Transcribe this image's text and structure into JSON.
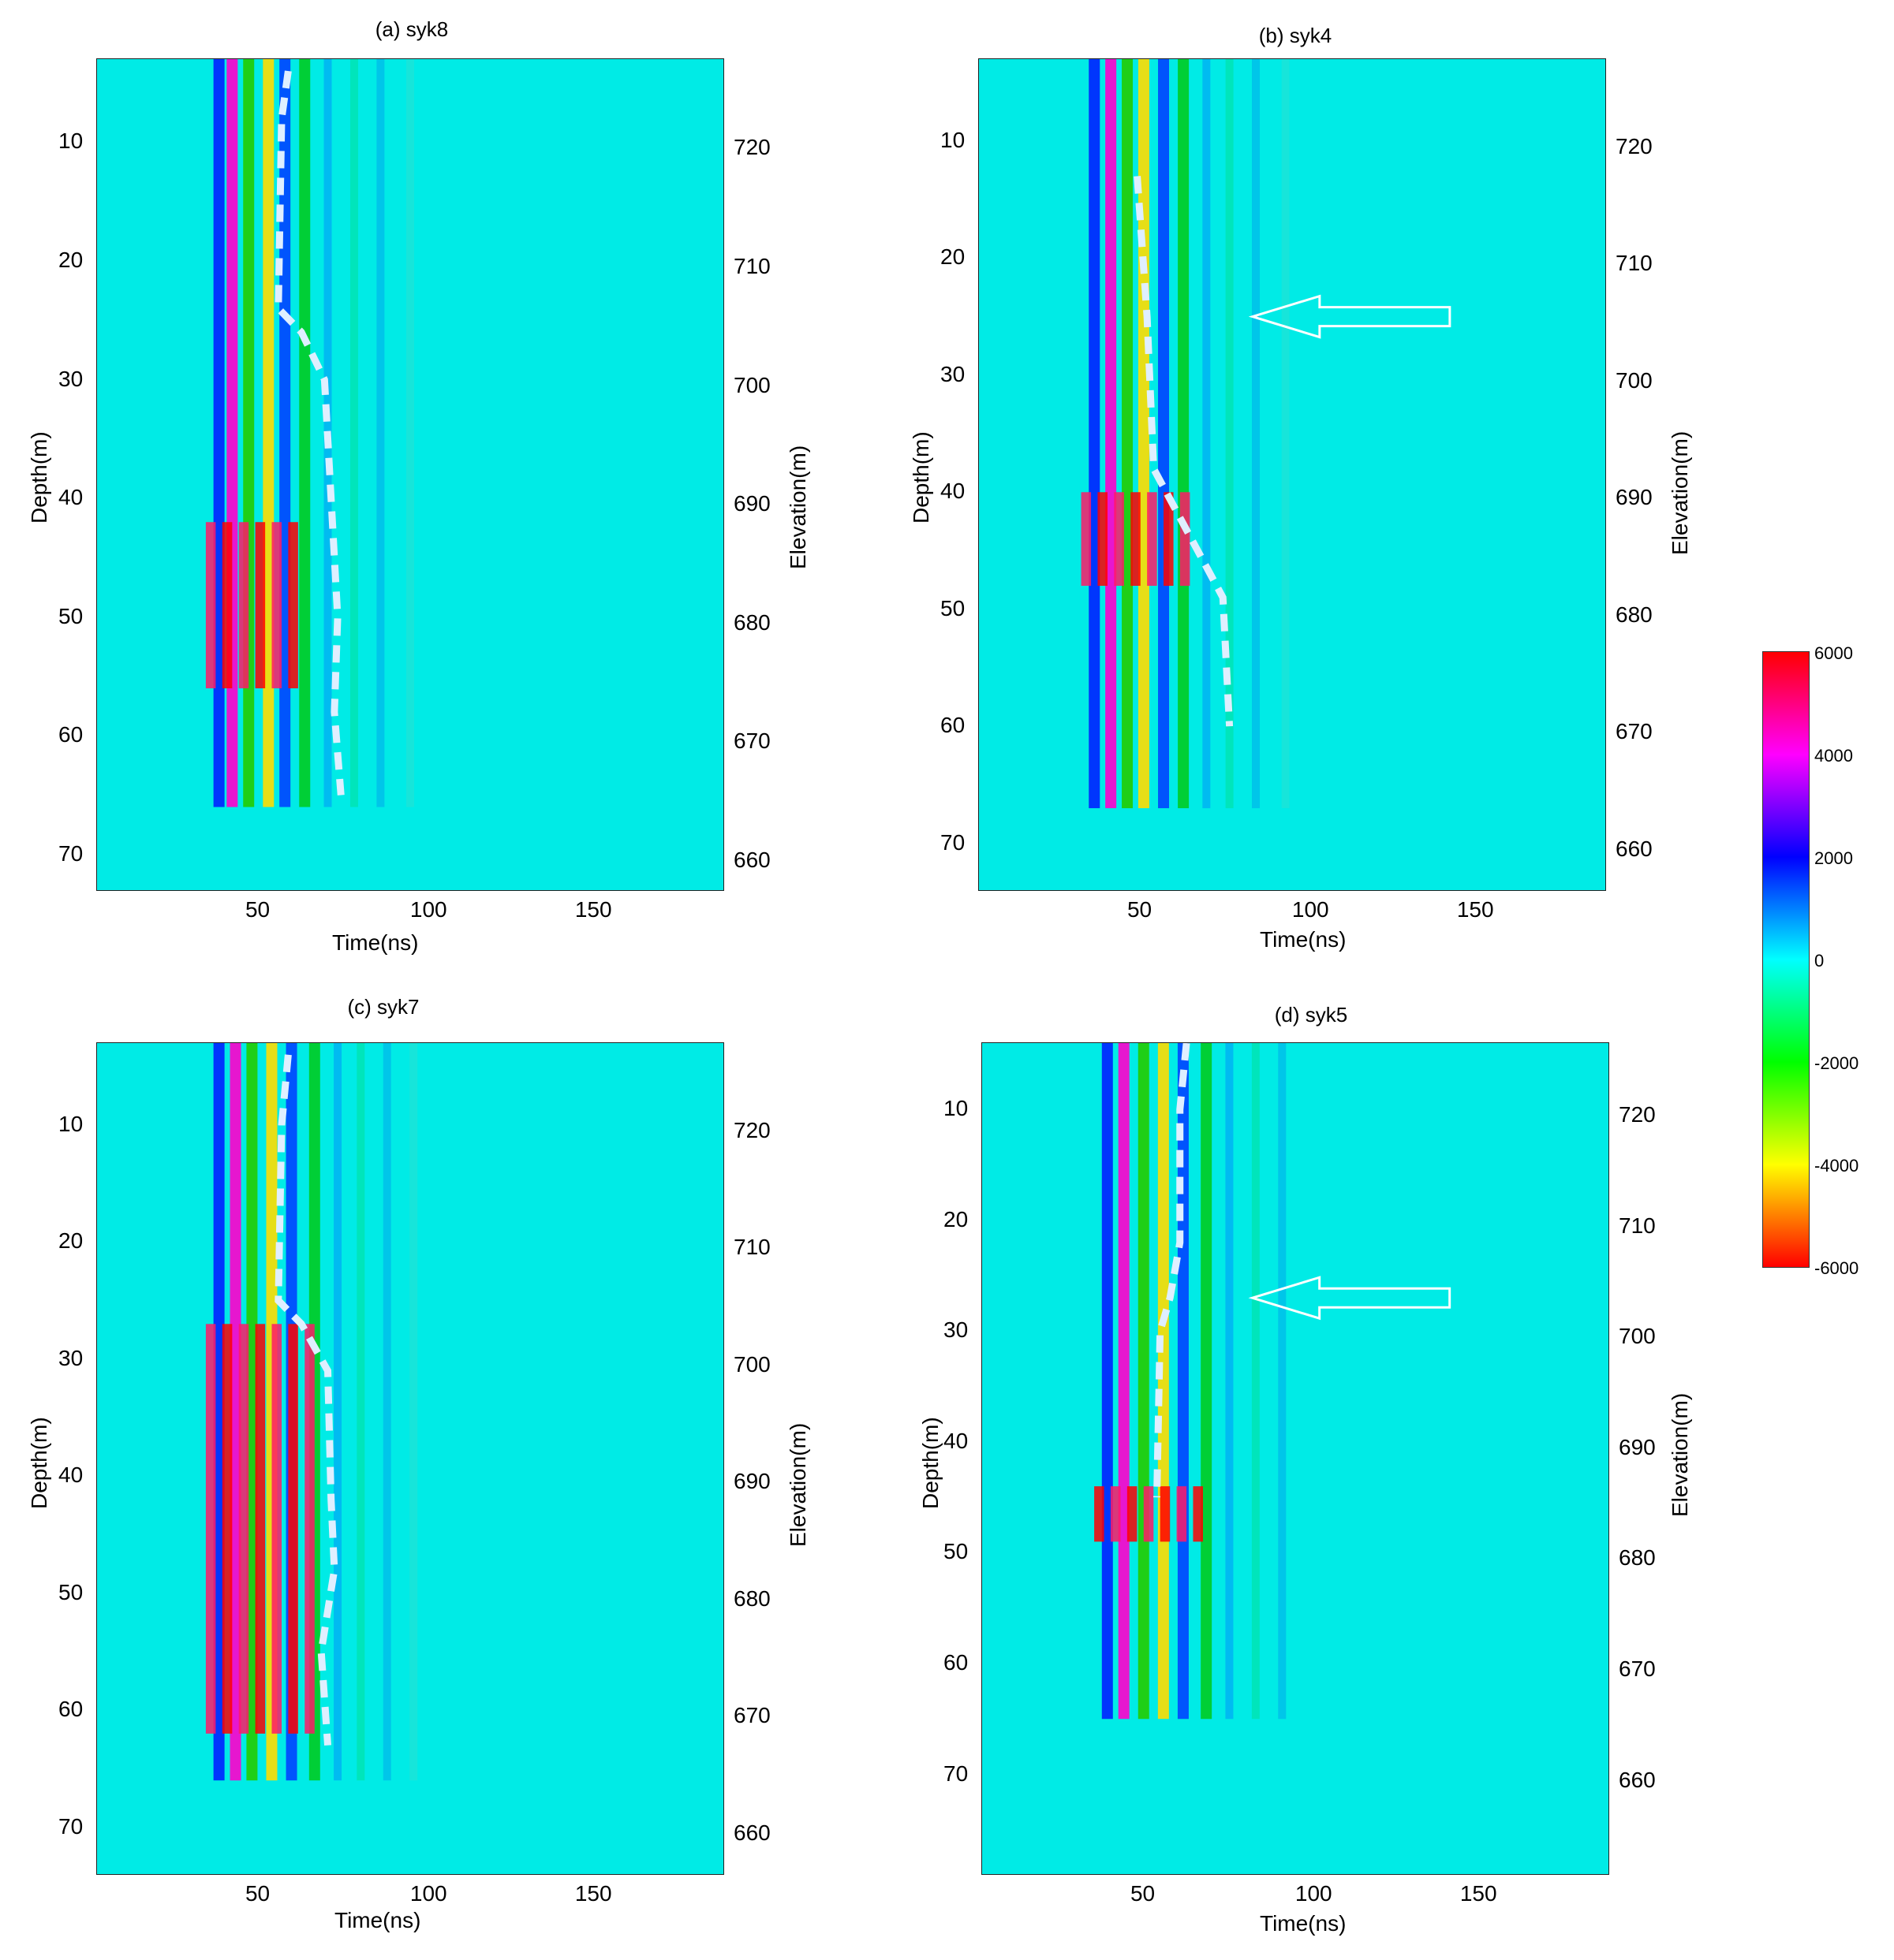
{
  "chart_data": [
    {
      "type": "heatmap",
      "title": "(a) syk8",
      "xlabel": "Time(ns)",
      "ylabel": "Depth(m)",
      "y2label": "Elevation(m)",
      "xlim": [
        0,
        190
      ],
      "xticks": [
        "50",
        "100",
        "150"
      ],
      "ylim": [
        73,
        3
      ],
      "yticks": [
        "10",
        "20",
        "30",
        "40",
        "50",
        "60",
        "70"
      ],
      "y2ticks": [
        "720",
        "710",
        "700",
        "690",
        "680",
        "670",
        "660"
      ],
      "wave_bands_ns": [
        37,
        41,
        46,
        52,
        57,
        63,
        70,
        78,
        86,
        95
      ],
      "strong_zone_depth_m": [
        42,
        56
      ],
      "dashed_boundary": [
        [
          58,
          4
        ],
        [
          56,
          8
        ],
        [
          55,
          24
        ],
        [
          62,
          26
        ],
        [
          69,
          30
        ],
        [
          71,
          40
        ],
        [
          73,
          50
        ],
        [
          72,
          58
        ],
        [
          74,
          65
        ]
      ]
    },
    {
      "type": "heatmap",
      "title": "(b) syk4",
      "xlabel": "Time(ns)",
      "ylabel": "Depth(m)",
      "y2label": "Elevation(m)",
      "xlim": [
        0,
        190
      ],
      "xticks": [
        "50",
        "100",
        "150"
      ],
      "ylim": [
        74,
        3
      ],
      "yticks": [
        "10",
        "20",
        "30",
        "40",
        "50",
        "60",
        "70"
      ],
      "y2ticks": [
        "720",
        "710",
        "700",
        "690",
        "680",
        "670",
        "660"
      ],
      "wave_bands_ns": [
        35,
        40,
        45,
        50,
        56,
        62,
        69,
        76,
        84,
        93
      ],
      "strong_zone_depth_m": [
        40,
        48
      ],
      "dashed_boundary": [
        [
          48,
          13
        ],
        [
          51,
          25
        ],
        [
          53,
          38
        ],
        [
          74,
          49
        ],
        [
          76,
          60
        ]
      ],
      "arrow_target": {
        "time_ns": 83,
        "depth_m": 25
      }
    },
    {
      "type": "heatmap",
      "title": "(c) syk7",
      "xlabel": "Time(ns)",
      "ylabel": "Depth(m)",
      "y2label": "Elevation(m)",
      "xlim": [
        0,
        190
      ],
      "xticks": [
        "50",
        "100",
        "150"
      ],
      "ylim": [
        74,
        3
      ],
      "yticks": [
        "10",
        "20",
        "30",
        "40",
        "50",
        "60",
        "70"
      ],
      "y2ticks": [
        "720",
        "710",
        "700",
        "690",
        "680",
        "670",
        "660"
      ],
      "wave_bands_ns": [
        37,
        42,
        47,
        53,
        59,
        66,
        73,
        80,
        88,
        96
      ],
      "strong_zone_depth_m": [
        27,
        62
      ],
      "dashed_boundary": [
        [
          58,
          4
        ],
        [
          56,
          10
        ],
        [
          55,
          25
        ],
        [
          62,
          27
        ],
        [
          70,
          31
        ],
        [
          71,
          42
        ],
        [
          72,
          48
        ],
        [
          68,
          55
        ],
        [
          70,
          63
        ]
      ]
    },
    {
      "type": "heatmap",
      "title": "(d) syk5",
      "xlabel": "Time(ns)",
      "ylabel": "Depth(m)",
      "y2label": "Elevation(m)",
      "xlim": [
        0,
        190
      ],
      "xticks": [
        "50",
        "100",
        "150"
      ],
      "ylim": [
        79,
        4
      ],
      "yticks": [
        "10",
        "20",
        "30",
        "40",
        "50",
        "60",
        "70"
      ],
      "y2ticks": [
        "720",
        "710",
        "700",
        "690",
        "680",
        "670",
        "660"
      ],
      "wave_bands_ns": [
        38,
        43,
        49,
        55,
        61,
        68,
        75,
        83,
        91
      ],
      "strong_zone_depth_m": [
        44,
        49
      ],
      "dashed_boundary": [
        [
          62,
          4
        ],
        [
          60,
          10
        ],
        [
          60,
          22
        ],
        [
          57,
          27
        ],
        [
          54,
          30
        ],
        [
          53,
          45
        ]
      ],
      "arrow_target": {
        "time_ns": 82,
        "depth_m": 27
      }
    }
  ],
  "colorbar": {
    "ticks": [
      "6000",
      "4000",
      "2000",
      "0",
      "-2000",
      "-4000",
      "-6000"
    ],
    "range": [
      -6000,
      6000
    ],
    "colors": [
      "#ff0000",
      "#ff00ff",
      "#0000ff",
      "#00ffff",
      "#00ff00",
      "#ffff00",
      "#ff0000"
    ]
  }
}
